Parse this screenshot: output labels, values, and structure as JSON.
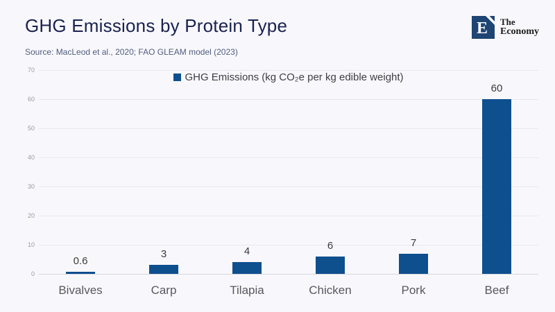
{
  "header": {
    "title": "GHG Emissions by Protein Type",
    "source": "Source:  MacLeod et al., 2020; FAO GLEAM model (2023)"
  },
  "logo": {
    "letter": "E",
    "name_line1": "The",
    "name_line2": "Economy"
  },
  "colors": {
    "bar": "#0e4f8e",
    "logo_square": "#1e4573",
    "title_text": "#1a2150",
    "background": "#f8f8fc"
  },
  "chart_data": {
    "type": "bar",
    "title": "GHG Emissions by Protein Type",
    "legend": "GHG Emissions (kg CO₂e per kg edible weight)",
    "legend_position": "top-center",
    "categories": [
      "Bivalves",
      "Carp",
      "Tilapia",
      "Chicken",
      "Pork",
      "Beef"
    ],
    "values": [
      0.6,
      3,
      4,
      6,
      7,
      60
    ],
    "value_labels": [
      "0.6",
      "3",
      "4",
      "6",
      "7",
      "60"
    ],
    "yticks": [
      0,
      10,
      20,
      30,
      40,
      50,
      60,
      70
    ],
    "ylim": [
      0,
      70
    ],
    "grid": true,
    "bar_color": "#0e4f8e",
    "xlabel": "",
    "ylabel": ""
  }
}
